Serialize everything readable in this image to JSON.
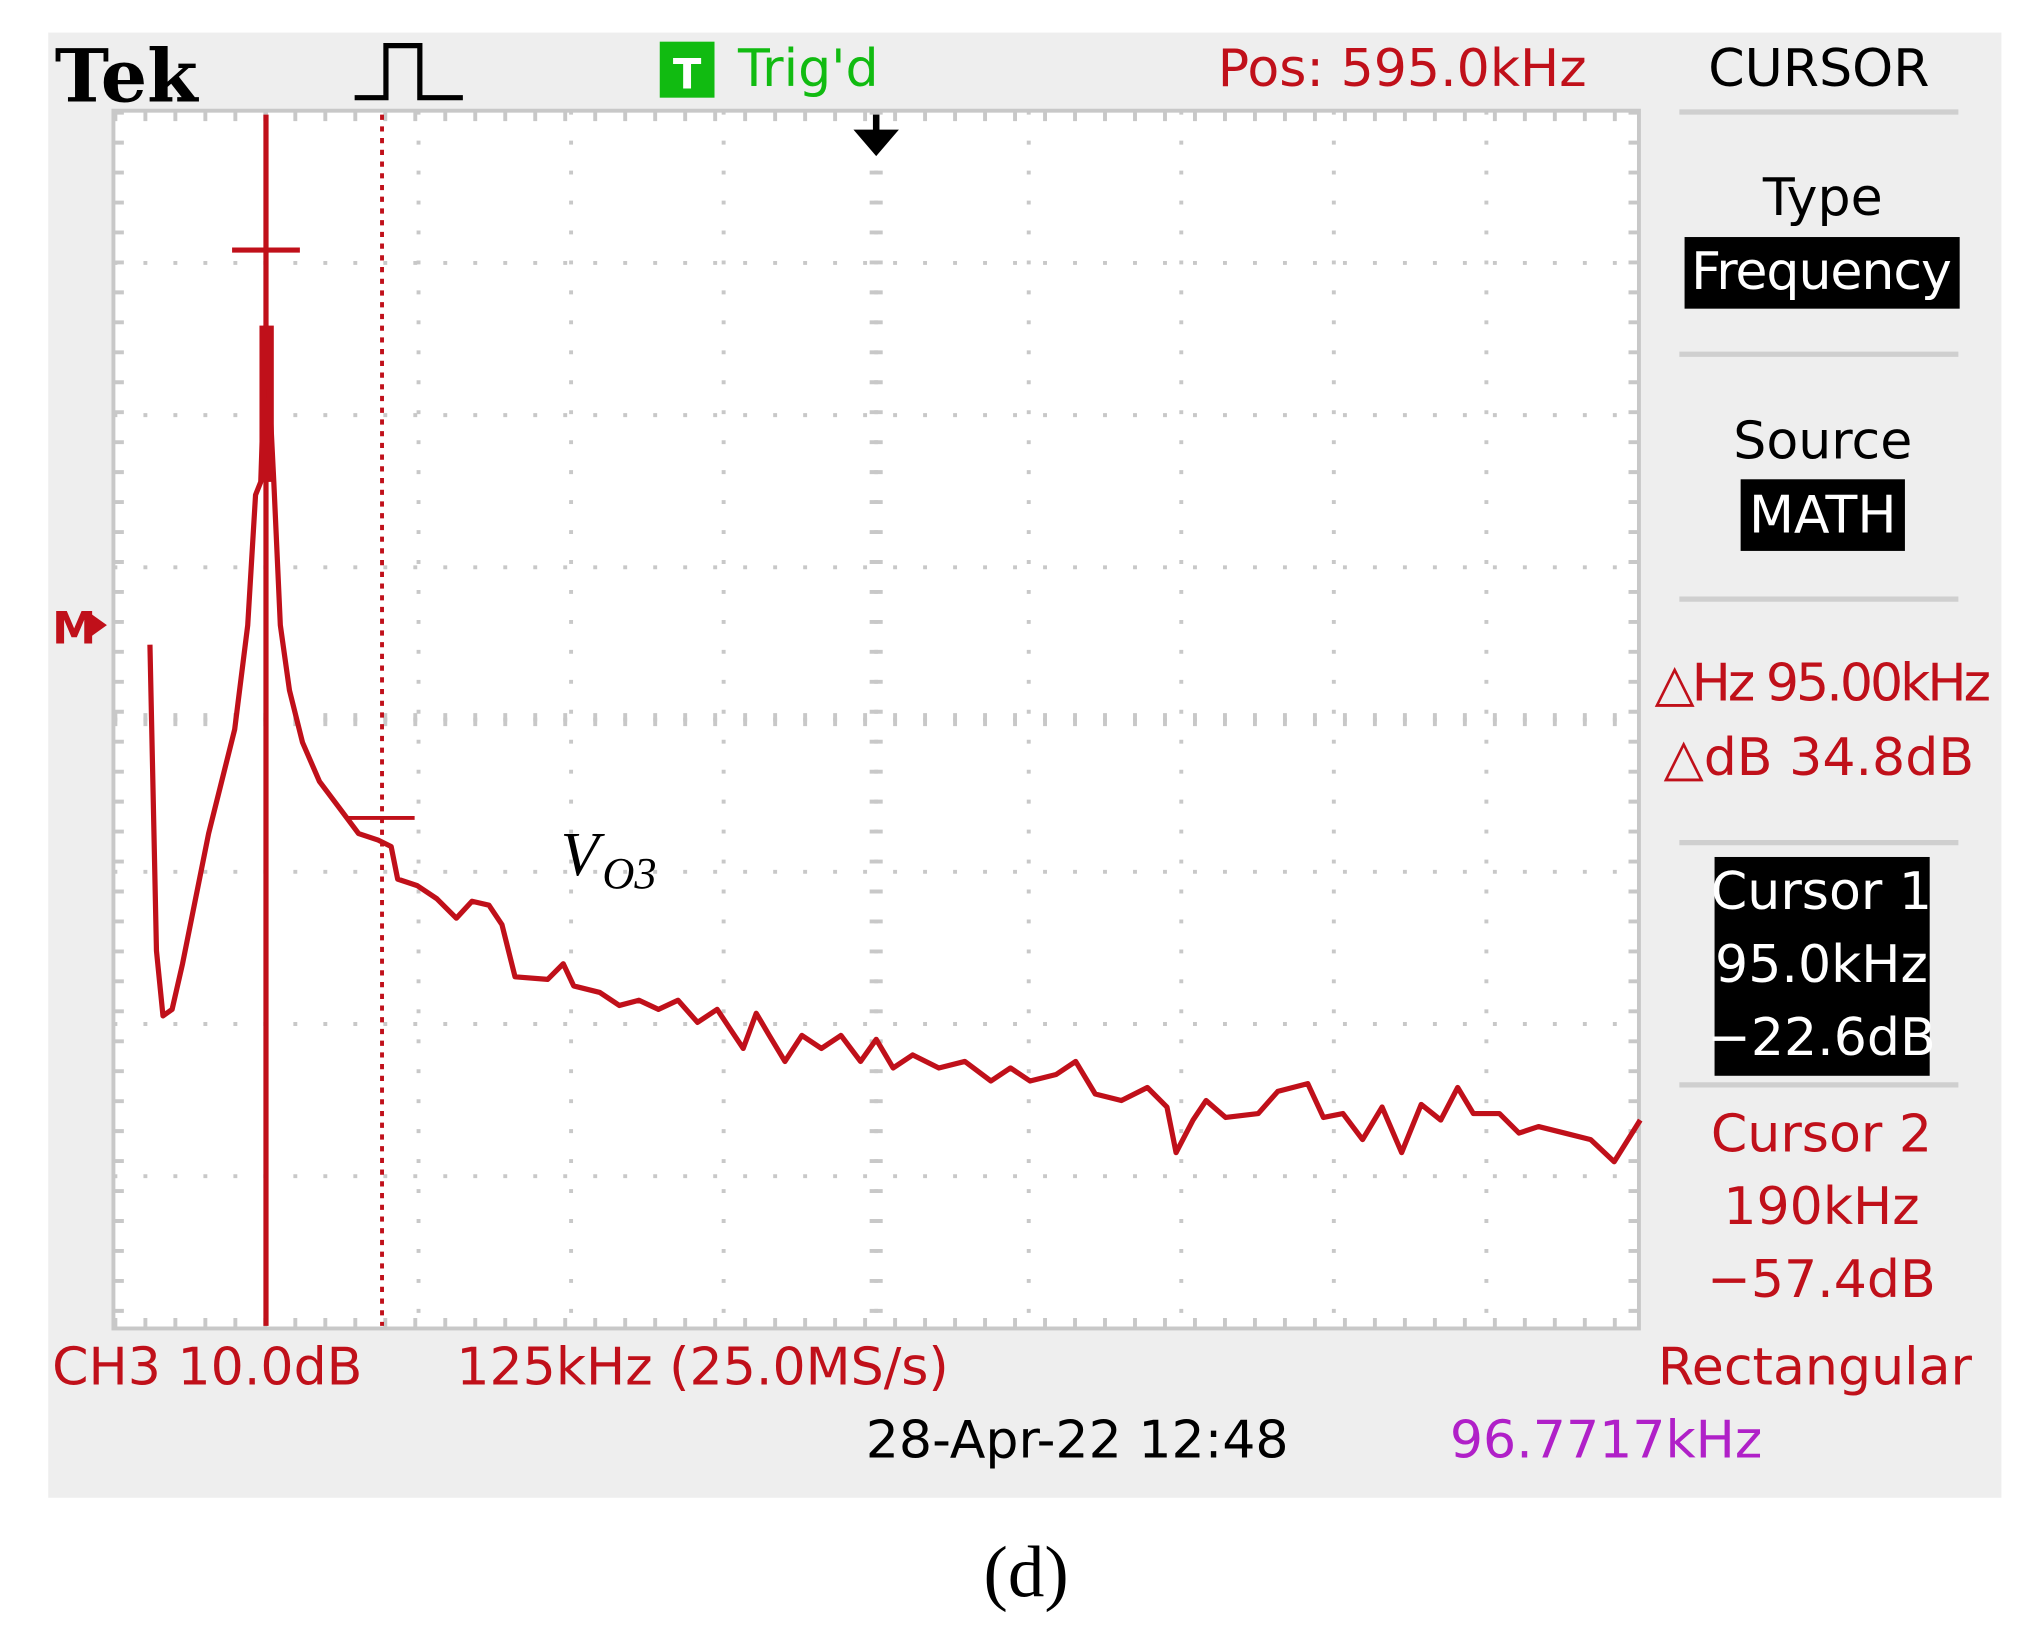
{
  "header": {
    "logo": "Tek",
    "trigger_icon": "T",
    "trigger_status": "Trig'd",
    "position": "Pos: 595.0kHz"
  },
  "menu": {
    "title": "CURSOR",
    "type_label": "Type",
    "type_value": "Frequency",
    "source_label": "Source",
    "source_value": "MATH",
    "delta_hz": "△Hz 95.00kHz",
    "delta_db": "△dB 34.8dB",
    "cursor1": [
      "Cursor 1",
      "95.0kHz",
      "−22.6dB"
    ],
    "cursor2": [
      "Cursor 2",
      "190kHz",
      "−57.4dB"
    ],
    "window": "Rectangular"
  },
  "footer": {
    "channel": "CH3 10.0dB",
    "timebase": "125kHz (25.0MS/s)",
    "datetime": "28-Apr-22 12:48",
    "frequency": "96.7717kHz"
  },
  "trace": {
    "marker": "M",
    "label": "V",
    "label_subscript": "O3"
  },
  "caption": "(d)"
}
